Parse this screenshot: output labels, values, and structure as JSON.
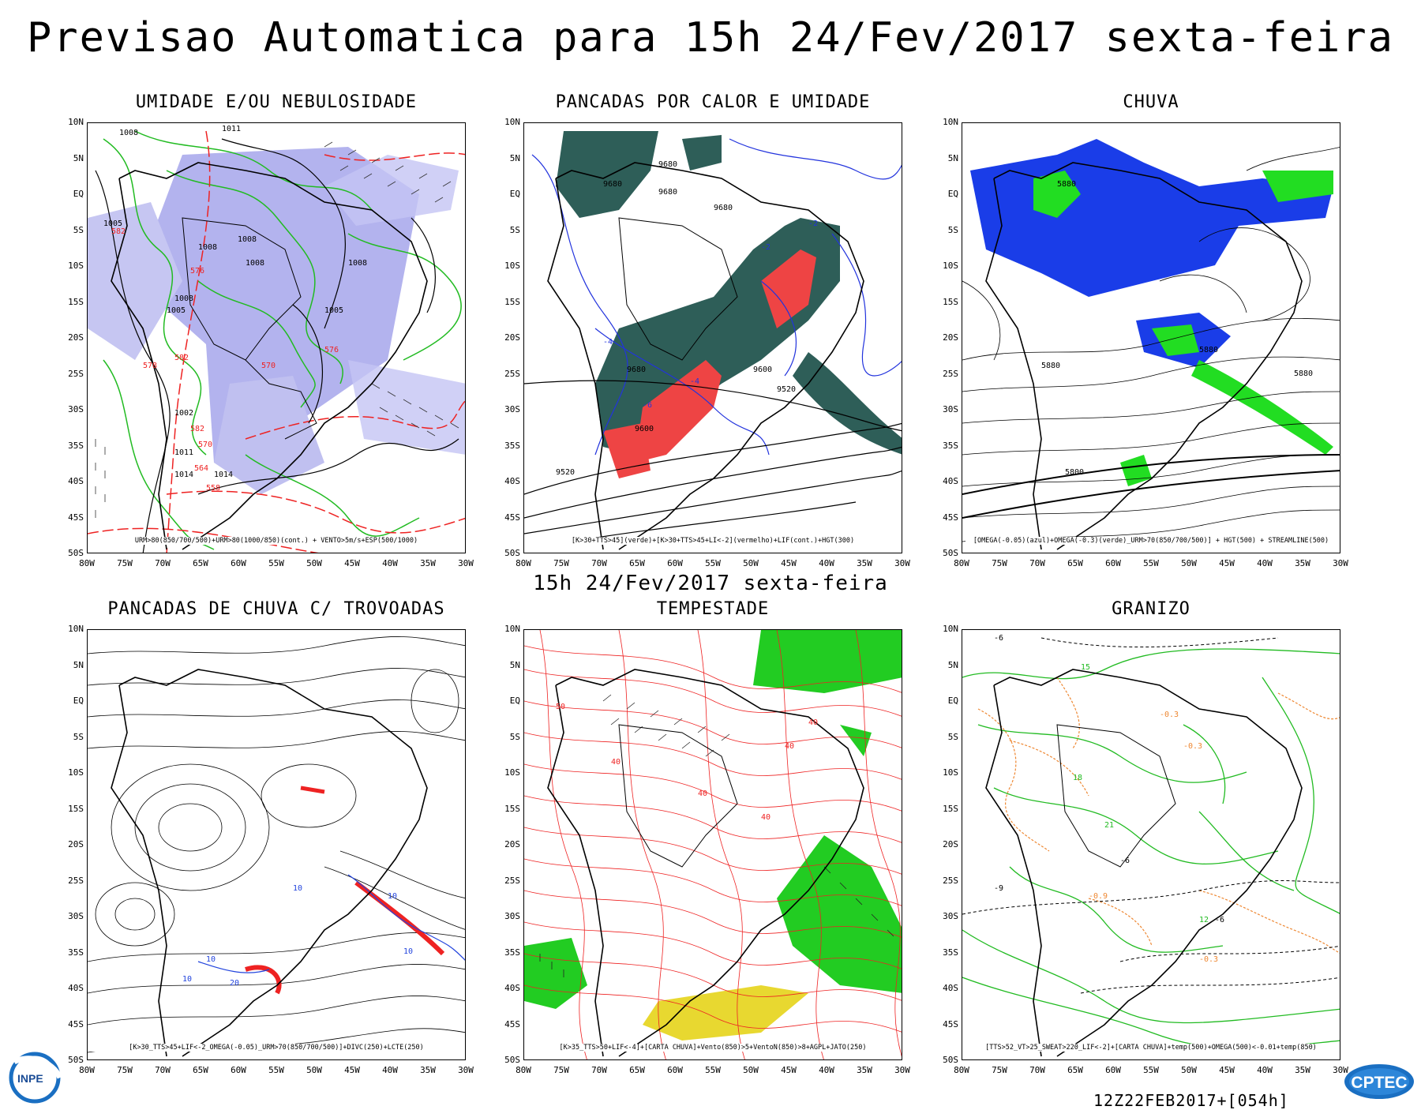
{
  "page": {
    "title": "Previsao Automatica  para 15h 24/Fev/2017 sexta-feira",
    "subtitle": "15h 24/Fev/2017 sexta-feira",
    "footer_run": "12Z22FEB2017+[054h]",
    "logo_left": "INPE",
    "logo_right": "CPTEC"
  },
  "axes": {
    "lat_labels": [
      "10N",
      "5N",
      "EQ",
      "5S",
      "10S",
      "15S",
      "20S",
      "25S",
      "30S",
      "35S",
      "40S",
      "45S",
      "50S"
    ],
    "lon_labels": [
      "80W",
      "75W",
      "70W",
      "65W",
      "60W",
      "55W",
      "50W",
      "45W",
      "40W",
      "35W",
      "30W"
    ],
    "lat_range": [
      -50,
      10
    ],
    "lon_range": [
      -80,
      -30
    ]
  },
  "panels": [
    {
      "title": "UMIDADE E/OU NEBULOSIDADE",
      "caption": "URM>80(850/700/500)+URM>80(1000/850)(cont.) + VENTO>5m/s+ESP(500/1000)",
      "labels": [
        "1008",
        "1011",
        "1005",
        "582",
        "1008",
        "1008",
        "1008",
        "576",
        "1008",
        "1005",
        "1008",
        "1005",
        "578",
        "582",
        "570",
        "576",
        "1002",
        "582",
        "1011",
        "570",
        "564",
        "1014",
        "1014",
        "558"
      ],
      "colors": {
        "fill": "#b3b3ee",
        "contour": "#22bb22",
        "isobar": "#000000",
        "thickness": "#ee2222"
      }
    },
    {
      "title": "PANCADAS POR CALOR E UMIDADE",
      "caption": "[K>30+TTS>45](verde)+[K>30+TTS>45+LI<-2](vermelho)+LIF(cont.)+HGT(300)",
      "labels": [
        "9680",
        "9680",
        "9680",
        "9680",
        "9680",
        "9600",
        "9520",
        "9600",
        "9520",
        "-2",
        "-2",
        "-4",
        "-4",
        "-6"
      ],
      "colors": {
        "fill_green": "#2e5e58",
        "fill_red": "#ee4444",
        "lif": "#2233dd",
        "hgt": "#000000"
      }
    },
    {
      "title": "CHUVA",
      "caption": "[OMEGA(-0.05)(azul)+OMEGA(-0.3)(verde)_URM>70(850/700/500)] + HGT(500) + STREAMLINE(500)",
      "labels": [
        "5880",
        "5880",
        "5880",
        "5880",
        "5800"
      ],
      "colors": {
        "fill_blue": "#1a3de8",
        "fill_green": "#22dd22",
        "stream": "#000000"
      }
    },
    {
      "title": "PANCADAS DE CHUVA C/ TROVOADAS",
      "caption": "[K>30_TTS>45+LIF<-2_OMEGA(-0.05)_URM>70(850/700/500)]+DIVC(250)+LCTE(250)",
      "labels": [
        "10",
        "10",
        "10",
        "10",
        "10",
        "20"
      ],
      "colors": {
        "stream": "#000000",
        "div": "#2244dd",
        "fill_red": "#ee2222"
      }
    },
    {
      "title": "TEMPESTADE",
      "caption": "[K>35_TTS>50+LIF<-4]+[CARTA CHUVA]+Vento(850)>5+VentoN(850)>8+AGPL+JATO(250)",
      "labels": [
        "50",
        "40",
        "40",
        "40",
        "40",
        "40"
      ],
      "colors": {
        "contour": "#ee2222",
        "fill_green": "#22cc22",
        "fill_yellow": "#e8d830",
        "wind": "#000000"
      }
    },
    {
      "title": "GRANIZO",
      "caption": "[TTS>52_VT>25_SWEAT>220_LIF<-2]+[CARTA CHUVA]+temp(500)+OMEGA(500)<-0.01+temp(850)",
      "labels": [
        "-6",
        "15",
        "18",
        "21",
        "-0.3",
        "-0.3",
        "-0.9",
        "-6",
        "12",
        "-9",
        "-6",
        "-0.3"
      ],
      "colors": {
        "temp850": "#22bb22",
        "omega": "#ee8833",
        "temp500": "#000000"
      }
    }
  ]
}
